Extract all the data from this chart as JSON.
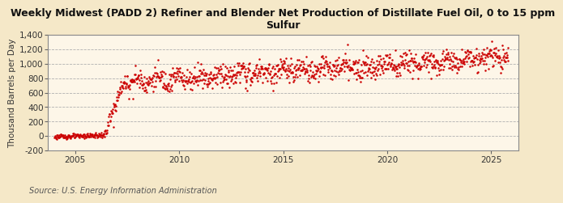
{
  "title": "Weekly Midwest (PADD 2) Refiner and Blender Net Production of Distillate Fuel Oil, 0 to 15 ppm\nSulfur",
  "ylabel": "Thousand Barrels per Day",
  "source": "Source: U.S. Energy Information Administration",
  "dot_color": "#cc0000",
  "background_color": "#f5e8c8",
  "plot_bg_color": "#fdf6e8",
  "ylim": [
    -200,
    1400
  ],
  "yticks": [
    -200,
    0,
    200,
    400,
    600,
    800,
    1000,
    1200,
    1400
  ],
  "xlim_start": 2003.7,
  "xlim_end": 2026.3,
  "xticks": [
    2005,
    2010,
    2015,
    2020,
    2025
  ],
  "grid_color": "#b0b0b0",
  "grid_style": "--",
  "marker_size": 1.8,
  "title_fontsize": 9.0,
  "axis_label_fontsize": 7.5,
  "tick_fontsize": 7.5,
  "source_fontsize": 7.0
}
